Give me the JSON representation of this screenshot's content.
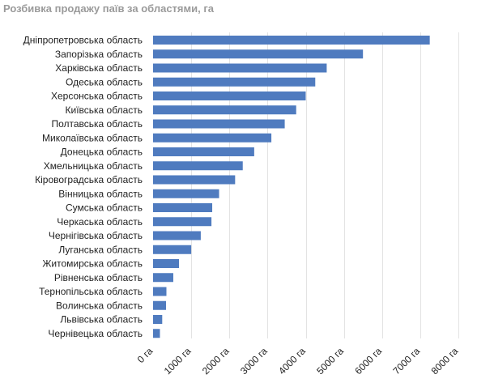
{
  "page": {
    "title": "Розбивка продажу паїв за областями, га"
  },
  "chart_data": {
    "type": "bar",
    "orientation": "horizontal",
    "title": "Розбивка продажу паїв за областями, га",
    "xlabel": "",
    "ylabel": "",
    "xlim": [
      0,
      8000
    ],
    "x_tick_values": [
      0,
      1000,
      2000,
      3000,
      4000,
      5000,
      6000,
      7000,
      8000
    ],
    "x_tick_labels": [
      "0 га",
      "1000 га",
      "2000 га",
      "3000 га",
      "4000 га",
      "5000 га",
      "6000 га",
      "7000 га",
      "8000 га"
    ],
    "grid": true,
    "legend": "none",
    "bar_color": "#4f7bbf",
    "categories": [
      "Дніпропетровська область",
      "Запорізька область",
      "Харківська область",
      "Одеська область",
      "Херсонська область",
      "Київська область",
      "Полтавська область",
      "Миколаївська область",
      "Донецька область",
      "Хмельницька область",
      "Кіровоградська область",
      "Вінницька область",
      "Сумська область",
      "Черкаська область",
      "Чернігівська область",
      "Луганська область",
      "Житомирська область",
      "Рівненська область",
      "Тернопільська область",
      "Волинська область",
      "Львівська область",
      "Чернівецька область"
    ],
    "values": [
      7250,
      5500,
      4550,
      4250,
      4000,
      3750,
      3450,
      3100,
      2650,
      2350,
      2150,
      1730,
      1550,
      1530,
      1250,
      1000,
      680,
      530,
      350,
      340,
      240,
      180
    ]
  }
}
